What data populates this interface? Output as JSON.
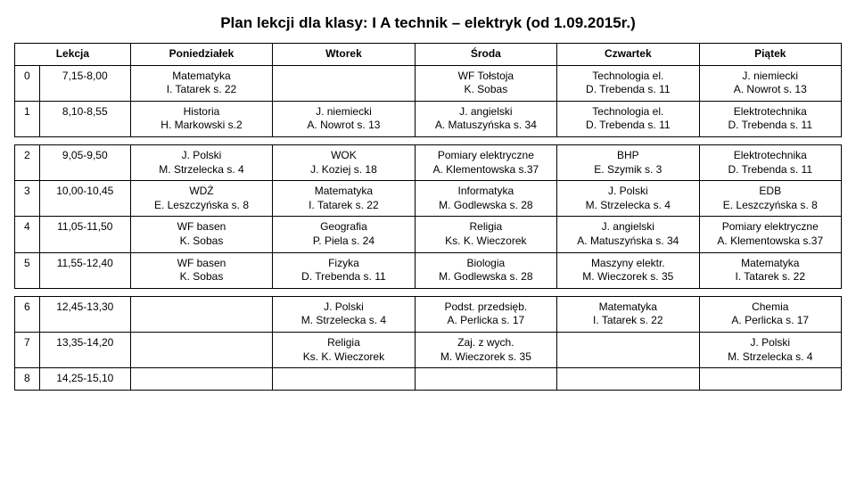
{
  "title": "Plan lekcji dla klasy: I A technik – elektryk (od 1.09.2015r.)",
  "headers": [
    "Lekcja",
    "Poniedziałek",
    "Wtorek",
    "Środa",
    "Czwartek",
    "Piątek"
  ],
  "rows": [
    {
      "num": "0",
      "time": "7,15-8,00",
      "cells": [
        {
          "l1": "Matematyka",
          "l2": "I. Tatarek s. 22"
        },
        {
          "l1": "",
          "l2": ""
        },
        {
          "l1": "WF Tołstoja",
          "l2": "K. Sobas"
        },
        {
          "l1": "Technologia el.",
          "l2": "D. Trebenda s. 11"
        },
        {
          "l1": "J. niemiecki",
          "l2": "A. Nowrot s. 13"
        }
      ]
    },
    {
      "num": "1",
      "time": "8,10-8,55",
      "cells": [
        {
          "l1": "Historia",
          "l2": "H. Markowski s.2"
        },
        {
          "l1": "J. niemiecki",
          "l2": "A. Nowrot s. 13"
        },
        {
          "l1": "J. angielski",
          "l2": "A. Matuszyńska s. 34"
        },
        {
          "l1": "Technologia el.",
          "l2": "D. Trebenda s. 11"
        },
        {
          "l1": "Elektrotechnika",
          "l2": "D. Trebenda s. 11"
        }
      ]
    },
    {
      "num": "2",
      "time": "9,05-9,50",
      "cells": [
        {
          "l1": "J. Polski",
          "l2": "M. Strzelecka s. 4"
        },
        {
          "l1": "WOK",
          "l2": "J. Koziej s. 18"
        },
        {
          "l1": "Pomiary elektryczne",
          "l2": "A. Klementowska s.37"
        },
        {
          "l1": "BHP",
          "l2": "E. Szymik s. 3"
        },
        {
          "l1": "Elektrotechnika",
          "l2": "D. Trebenda s. 11"
        }
      ]
    },
    {
      "num": "3",
      "time": "10,00-10,45",
      "cells": [
        {
          "l1": "WDŻ",
          "l2": "E. Leszczyńska s. 8"
        },
        {
          "l1": "Matematyka",
          "l2": "I. Tatarek s. 22"
        },
        {
          "l1": "Informatyka",
          "l2": "M. Godlewska s. 28"
        },
        {
          "l1": "J. Polski",
          "l2": "M. Strzelecka s. 4"
        },
        {
          "l1": "EDB",
          "l2": "E. Leszczyńska s. 8"
        }
      ]
    },
    {
      "num": "4",
      "time": "11,05-11,50",
      "cells": [
        {
          "l1": "WF basen",
          "l2": "K. Sobas"
        },
        {
          "l1": "Geografia",
          "l2": "P. Piela s. 24"
        },
        {
          "l1": "Religia",
          "l2": "Ks. K. Wieczorek"
        },
        {
          "l1": "J. angielski",
          "l2": "A. Matuszyńska s. 34"
        },
        {
          "l1": "Pomiary elektryczne",
          "l2": "A. Klementowska s.37"
        }
      ]
    },
    {
      "num": "5",
      "time": "11,55-12,40",
      "cells": [
        {
          "l1": "WF basen",
          "l2": "K. Sobas"
        },
        {
          "l1": "Fizyka",
          "l2": "D. Trebenda s. 11"
        },
        {
          "l1": "Biologia",
          "l2": "M. Godlewska s. 28"
        },
        {
          "l1": "Maszyny elektr.",
          "l2": "M. Wieczorek s. 35"
        },
        {
          "l1": "Matematyka",
          "l2": "I. Tatarek s. 22"
        }
      ]
    },
    {
      "num": "6",
      "time": "12,45-13,30",
      "cells": [
        {
          "l1": "",
          "l2": ""
        },
        {
          "l1": "J. Polski",
          "l2": "M. Strzelecka s. 4"
        },
        {
          "l1": "Podst. przedsięb.",
          "l2": "A. Perlicka s. 17"
        },
        {
          "l1": "Matematyka",
          "l2": "I. Tatarek s. 22"
        },
        {
          "l1": "Chemia",
          "l2": "A. Perlicka s. 17"
        }
      ]
    },
    {
      "num": "7",
      "time": "13,35-14,20",
      "cells": [
        {
          "l1": "",
          "l2": ""
        },
        {
          "l1": "Religia",
          "l2": "Ks. K. Wieczorek"
        },
        {
          "l1": "Zaj. z wych.",
          "l2": "M. Wieczorek s. 35"
        },
        {
          "l1": "",
          "l2": ""
        },
        {
          "l1": "J. Polski",
          "l2": "M. Strzelecka s. 4"
        }
      ]
    },
    {
      "num": "8",
      "time": "14,25-15,10",
      "cells": [
        {
          "l1": "",
          "l2": ""
        },
        {
          "l1": "",
          "l2": ""
        },
        {
          "l1": "",
          "l2": ""
        },
        {
          "l1": "",
          "l2": ""
        },
        {
          "l1": "",
          "l2": ""
        }
      ]
    }
  ],
  "spacer_after": [
    1,
    5
  ]
}
